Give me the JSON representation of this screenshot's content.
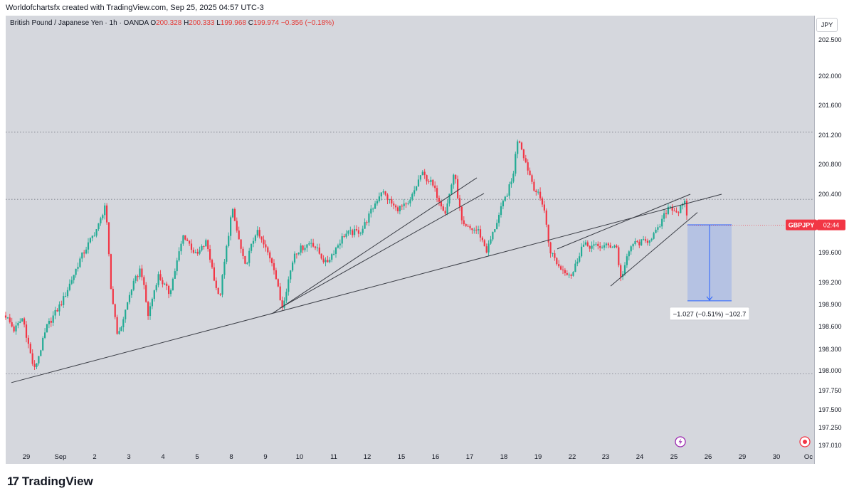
{
  "header": {
    "attribution": "Worldofchartsfx created with TradingView.com, Sep 25, 2025 04:57 UTC-3"
  },
  "legend": {
    "symbol_line": "British Pound / Japanese Yen · 1h · OANDA",
    "open_label": "O",
    "open": "200.328",
    "high_label": "H",
    "high": "200.333",
    "low_label": "L",
    "low": "199.968",
    "close_label": "C",
    "close": "199.974",
    "change": "−0.356 (−0.18%)"
  },
  "currency_button": "JPY",
  "price_badge": {
    "symbol": "GBPJPY",
    "countdown": "02:44"
  },
  "measure_label": "−1.027 (−0.51%) −102.7",
  "footer": {
    "brand": "TradingView"
  },
  "colors": {
    "up": "#22ab94",
    "down": "#f23645",
    "background": "#d5d7dd",
    "badge": "#f23645",
    "measure": "#2962ff"
  },
  "icons": [
    "tradingview-logo-icon",
    "lightning-icon",
    "record-icon"
  ],
  "chart_data": {
    "type": "candlestick",
    "symbol": "GBPJPY",
    "interval": "1h",
    "ylim": [
      197.0,
      202.6
    ],
    "yticks": [
      202.5,
      202.0,
      201.6,
      201.2,
      200.8,
      200.4,
      200.0,
      199.6,
      199.2,
      198.9,
      198.6,
      198.3,
      198.0,
      197.75,
      197.5,
      197.25,
      197.01
    ],
    "ytick_labels": [
      "202.500",
      "202.000",
      "201.600",
      "201.200",
      "200.800",
      "200.400",
      "",
      "199.600",
      "199.200",
      "198.900",
      "198.600",
      "198.300",
      "198.000",
      "197.750",
      "197.500",
      "197.250",
      "197.010"
    ],
    "xticks": [
      "29",
      "Sep",
      "2",
      "3",
      "4",
      "5",
      "8",
      "9",
      "10",
      "11",
      "12",
      "15",
      "16",
      "17",
      "18",
      "19",
      "22",
      "23",
      "24",
      "25",
      "26",
      "29",
      "30",
      "Oc"
    ],
    "path_points": [
      {
        "t": 0,
        "p": 198.75
      },
      {
        "t": 12,
        "p": 198.55
      },
      {
        "t": 24,
        "p": 198.72
      },
      {
        "t": 40,
        "p": 198.0
      },
      {
        "t": 58,
        "p": 198.6
      },
      {
        "t": 80,
        "p": 198.95
      },
      {
        "t": 104,
        "p": 199.5
      },
      {
        "t": 132,
        "p": 200.0
      },
      {
        "t": 140,
        "p": 200.28
      },
      {
        "t": 148,
        "p": 199.1
      },
      {
        "t": 158,
        "p": 198.45
      },
      {
        "t": 176,
        "p": 199.1
      },
      {
        "t": 190,
        "p": 199.4
      },
      {
        "t": 200,
        "p": 198.75
      },
      {
        "t": 214,
        "p": 199.3
      },
      {
        "t": 230,
        "p": 199.05
      },
      {
        "t": 250,
        "p": 199.85
      },
      {
        "t": 268,
        "p": 199.55
      },
      {
        "t": 282,
        "p": 199.75
      },
      {
        "t": 300,
        "p": 198.95
      },
      {
        "t": 318,
        "p": 200.2
      },
      {
        "t": 336,
        "p": 199.4
      },
      {
        "t": 352,
        "p": 199.9
      },
      {
        "t": 376,
        "p": 199.45
      },
      {
        "t": 388,
        "p": 198.85
      },
      {
        "t": 406,
        "p": 199.6
      },
      {
        "t": 430,
        "p": 199.75
      },
      {
        "t": 450,
        "p": 199.45
      },
      {
        "t": 476,
        "p": 199.85
      },
      {
        "t": 500,
        "p": 199.9
      },
      {
        "t": 528,
        "p": 200.45
      },
      {
        "t": 548,
        "p": 200.2
      },
      {
        "t": 566,
        "p": 200.25
      },
      {
        "t": 584,
        "p": 200.68
      },
      {
        "t": 598,
        "p": 200.55
      },
      {
        "t": 618,
        "p": 200.15
      },
      {
        "t": 630,
        "p": 200.7
      },
      {
        "t": 642,
        "p": 199.95
      },
      {
        "t": 664,
        "p": 199.9
      },
      {
        "t": 676,
        "p": 199.62
      },
      {
        "t": 698,
        "p": 200.25
      },
      {
        "t": 712,
        "p": 200.6
      },
      {
        "t": 720,
        "p": 201.2
      },
      {
        "t": 730,
        "p": 200.85
      },
      {
        "t": 742,
        "p": 200.5
      },
      {
        "t": 756,
        "p": 200.25
      },
      {
        "t": 764,
        "p": 199.65
      },
      {
        "t": 778,
        "p": 199.4
      },
      {
        "t": 796,
        "p": 199.3
      },
      {
        "t": 810,
        "p": 199.7
      },
      {
        "t": 832,
        "p": 199.68
      },
      {
        "t": 858,
        "p": 199.7
      },
      {
        "t": 864,
        "p": 199.25
      },
      {
        "t": 880,
        "p": 199.72
      },
      {
        "t": 900,
        "p": 199.75
      },
      {
        "t": 916,
        "p": 199.9
      },
      {
        "t": 932,
        "p": 200.25
      },
      {
        "t": 944,
        "p": 200.15
      },
      {
        "t": 952,
        "p": 200.25
      },
      {
        "t": 956,
        "p": 200.28
      },
      {
        "t": 958,
        "p": 199.98
      }
    ],
    "horizontal_levels": [
      201.24,
      200.33,
      197.96
    ],
    "trendlines": [
      {
        "from": {
          "t": 8,
          "p": 197.85
        },
        "to": {
          "t": 1006,
          "p": 200.4
        }
      },
      {
        "from": {
          "t": 375,
          "p": 198.78
        },
        "to": {
          "t": 662,
          "p": 200.62
        }
      },
      {
        "from": {
          "t": 385,
          "p": 198.85
        },
        "to": {
          "t": 672,
          "p": 200.41
        }
      },
      {
        "from": {
          "t": 775,
          "p": 199.65
        },
        "to": {
          "t": 962,
          "p": 200.4
        }
      },
      {
        "from": {
          "t": 850,
          "p": 199.15
        },
        "to": {
          "t": 972,
          "p": 200.15
        }
      }
    ],
    "price_range_measure": {
      "t_start": 958,
      "t_end": 1020,
      "from": 199.98,
      "to": 198.95,
      "change": -1.027,
      "percent": -0.51,
      "ticks": -102.7
    },
    "last_price": 199.974
  }
}
